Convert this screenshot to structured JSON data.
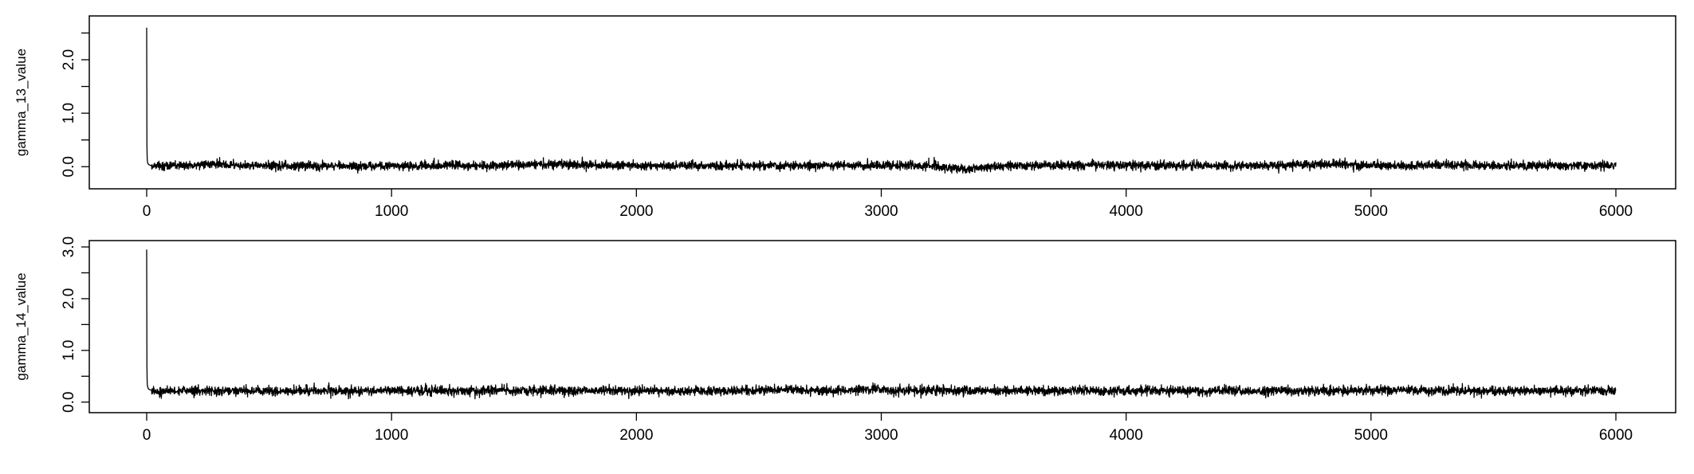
{
  "chart_data": [
    {
      "type": "line",
      "ylabel": "gamma_13_value",
      "xlim": [
        0,
        6000
      ],
      "ylim": [
        -0.25,
        2.7
      ],
      "x_ticks": [
        0,
        1000,
        2000,
        3000,
        4000,
        5000,
        6000
      ],
      "y_ticks": [
        0.0,
        0.5,
        1.0,
        1.5,
        2.0,
        2.5
      ],
      "y_tick_labels": [
        "0.0",
        "",
        "1.0",
        "",
        "2.0",
        ""
      ],
      "grid": false,
      "color": "#000000",
      "series": [
        {
          "x": [
            0,
            1,
            2,
            3,
            5,
            8,
            12,
            20,
            40,
            80,
            150,
            250,
            400,
            600,
            800,
            1000,
            1200,
            1400,
            1600,
            1700,
            1800,
            2000,
            2200,
            2400,
            2600,
            2800,
            3000,
            3200,
            3340,
            3500,
            3800,
            4000,
            4200,
            4400,
            4600,
            4800,
            4850,
            5000,
            5200,
            5340,
            5400,
            5600,
            5800,
            6000
          ],
          "y": [
            2.6,
            0.4,
            0.18,
            0.1,
            0.06,
            0.04,
            0.03,
            0.02,
            0.02,
            0.02,
            0.02,
            0.05,
            0.02,
            0.02,
            0.01,
            0.02,
            0.02,
            0.02,
            0.04,
            0.05,
            0.03,
            0.02,
            0.02,
            0.02,
            0.02,
            0.02,
            0.02,
            0.02,
            -0.05,
            0.02,
            0.02,
            0.03,
            0.02,
            0.02,
            0.02,
            0.04,
            0.05,
            0.02,
            0.02,
            0.03,
            0.02,
            0.02,
            0.02,
            0.02
          ]
        }
      ],
      "noise": {
        "sd": 0.04,
        "min": -0.12,
        "max": 0.18,
        "seed": 13
      }
    },
    {
      "type": "line",
      "ylabel": "gamma_14_value",
      "xlim": [
        0,
        6000
      ],
      "ylim": [
        -0.05,
        3.0
      ],
      "x_ticks": [
        0,
        1000,
        2000,
        3000,
        4000,
        5000,
        6000
      ],
      "y_ticks": [
        0.0,
        0.5,
        1.0,
        1.5,
        2.0,
        2.5,
        3.0
      ],
      "y_tick_labels": [
        "0.0",
        "",
        "1.0",
        "",
        "2.0",
        "",
        "3.0"
      ],
      "grid": false,
      "color": "#000000",
      "series": [
        {
          "x": [
            0,
            1,
            2,
            3,
            5,
            8,
            12,
            20,
            40,
            100,
            400,
            800,
            1200,
            1600,
            2000,
            2400,
            2560,
            2800,
            2980,
            3000,
            3400,
            3800,
            4200,
            4600,
            5000,
            5020,
            5400,
            5800,
            6000
          ],
          "y": [
            2.95,
            0.7,
            0.4,
            0.32,
            0.28,
            0.25,
            0.24,
            0.23,
            0.22,
            0.22,
            0.22,
            0.22,
            0.22,
            0.22,
            0.22,
            0.22,
            0.24,
            0.22,
            0.26,
            0.23,
            0.22,
            0.22,
            0.22,
            0.22,
            0.22,
            0.24,
            0.22,
            0.22,
            0.22
          ]
        }
      ],
      "noise": {
        "sd": 0.045,
        "min": 0.06,
        "max": 0.42,
        "seed": 14
      }
    }
  ]
}
